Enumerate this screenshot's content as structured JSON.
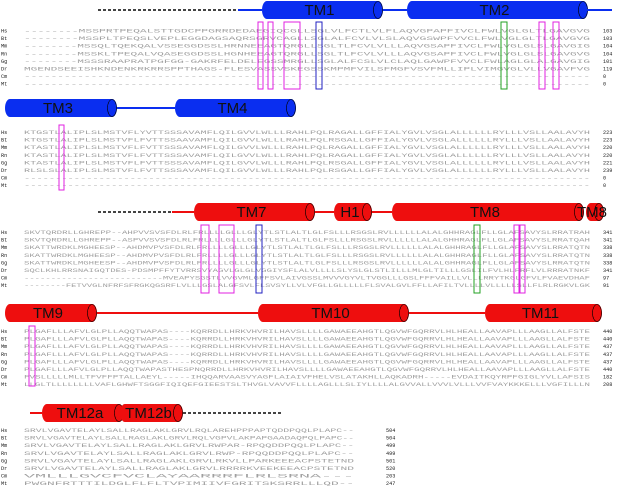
{
  "species": [
    "Hs",
    "Bt",
    "Mm",
    "Rn",
    "Gg",
    "Dr",
    "Cm",
    "Mt"
  ],
  "colors": {
    "blue": "#0a2ef0",
    "red": "#ee0e0e",
    "magenta_box": "#e020e0",
    "blue_box": "#2020c0",
    "green_box": "#20a020",
    "residue": "#a0a0a0"
  },
  "blocks": [
    {
      "sequences": [
        "--------MSSPRTPEQALSTTGDCPPGRRDEDAEGIQCGLLSGLVLFCTLVLFLAQVGPAPFIVCLFWLVGLGLTLGAVGVG",
        "--------MSSPLTPEQSLVEPLEGGDAGSAQRSGRVCAGLLSGLALFCVLVLSLAQVGSWPFVVCLFWLVGLGLTLGAVGVG",
        "--------MSSQLTQEKQALVSSEGGDSSLHRNNEEAGTQRGLLSGLTLFCVLVLLLAQVGSAPFIVCLFWLVGLGLSLGAVGIG",
        "--------MSSKLTPEQALVQASEGGDSSLHGNHEEAGTQRGLLSGLTLFCVLVLLLAQVGSAPFIVCLFWLVGLGLSLGAVGVG",
        "--------MSSSRAAPRATPGFGG-GAKRFELDELEGSSMRGLLSGLALFCSLVLCLAQLGAWPFVVCLFWLAGLGLALGAVGIG",
        "MGENDSEEISHKNDENKRKRRSPPTHAGS-FLESVASSVSKEGSSKMPMFVILSFMGFVSVFMLLIPLVIMGVGLVLLVGAVFVG",
        "-------------------------------------------------------------------------------------",
        "-------------------------------------------------------------------------------------"
      ],
      "numbers": [
        "103",
        "103",
        "104",
        "104",
        "101",
        "119",
        "0",
        "0"
      ]
    },
    {
      "sequences": [
        "KTGSTLALIPLSLMSTVFLYVTTSSSAVAMFLQILGVVLWLLLRAHLPQLRAGALLGFFIALYGVLVSGLALLLLLLRYLLLVSLLAALAVYH",
        "KTGSTLALIPLSLMSTVFLFVTTSSAAVAMFLQILGVVLWLLLRAHLPQLRSGALLGFFIALYGVLVSGLALLLLLLRYLLLVSLLAALAVYH",
        "KTASTLALIPLSLMSTVFLFVTTSSSAVAMFLQILGVVLWLLLRAHLPQLRAGALLGFFIALYGVLVSGLALLLLLLRYLLLVSLLAALAVYH",
        "KTASTLALIPLSLMSTVFLFVTTSSSAVAMFLQILGVVLWLLLRAHLPQLRAGALLGFFIALYGVLVSGLALLLLLLRYLLLVSLLAALAVYH",
        "KTASTLALIPLSLMSTVFLFVTTSSSAVAMFLQILGVVLWLLLRAHLPQLRSGALLGFFIALYGVLVSGLALLLLLLRYLLLVSLLAALAVYH",
        "RLSLSLALIPLSLMSTVFLFVTTSSSAVAMFLQILGVVLWLLLRAHLPQLRSGALLGFFIALYGVLVSGLALLLLLLRYLLLVSLLAALAVYH",
        "-------------------------------------------------------------------------------------------",
        "-------------------------------------------------------------------------------------------"
      ],
      "numbers": [
        "223",
        "223",
        "220",
        "220",
        "221",
        "239",
        "0",
        "0"
      ]
    },
    {
      "sequences": [
        "SKVTQRDRLLGHREPP--AHPVVSVSFDLRLFRLLLLGLLLGLYTLSTLALTLGLFSLLLRSGSLRVLLLLLLALALGHHRAGLFLLGLAFSAVYSLRRATRAH",
        "SKVTQRDRLLGHREPP--ASPVVSVSFDLRLFRLLLLGLLLGLYTLSTLALTLGLFSLLLRSGSLRVLLLLLLALALGHHRAGLFLLGLAFSAVYSLRRATQAH",
        "SKATTWRDKLMGHEESP--AHDMVPVSFDLRLFRLLLLGLLLGLYTLSTLALTLGLFSLLLRSGSLRVLLLLLLALALGHHRAGLFLLGLAFSAVYSLRRATQTN",
        "SKATTWRDKLMGHEESP--AHDMVPVSFDLRLFRLLLLGLLLGLYTLSTLALTLGLFSLLLRSGSLRVLLLLLLALALGHHRAGLFLLGLAFSAVYSLRRATQTN",
        "SKATTWRDKLMGHEESP--AHDMVPVSFDLRLFRLLLLGLLLGLYTLSTLALTLGLFSLLLRSGSLRVLLLLLLALALGHHRAGLFLLGLAFSAVYSLRRATQTN",
        "SQCLKHLRRSNAIGQTDES-PDSMPFFYTVRRSVYAGVLGLGLVGGIYSFLALVLLLLSLYSLGLSTLILLLMLGLTILLLGSLILFVLHLFRFLVLRRRATNKF",
        "--------------------------MVEAPYSGSTLVVGVMLGFFSVLAIVGSSLMVVVGYVLTVGGLLLGSLFFFVAILLVLLLRRYTKGLGFVLFVAEVDHAF",
        "--------FETVVGLNFRFSFRGKQGSRFLVLLLGSLALGFSVLFLSVSYLLVLVFGLLGLLLLLFLSVALGVLFFLLAFILTVLLLLVLLLLLSLLFLRLRGKVLGK"
      ],
      "numbers": [
        "341",
        "341",
        "338",
        "338",
        "338",
        "341",
        "97",
        "91"
      ]
    },
    {
      "sequences": [
        "PLGAFLLLAFVLGLPLLAQQTWAPAS----KQRRDLLHRKVHVRILHAVSLLLLGAWAEEAHGTLQGVWFGQRRVLHLHEALLAAVAPLLLAAGLLALFSTE",
        "PLGAFLLLAFVLGLPLLAQQTWAPAS----KQRRDLLHRKVHVRILHAVSLLLLGAWAEEAHGTLQGVWFGQRRVLHLHEALLAAVAPLLLAAGLLALFSTE",
        "PLGAFLLLAFVLGLPLLAQQTWAPAS----KQRRDLLHRKVHVRILHAVSLLLLGAWAEEAHGTLQGVWFGQRRVLHLHEALLAAVAPLLLAAGLLALFSTE",
        "PLGAFLLLAFVLGLPLLAQQTWAPAS----KQRRDLLHRKVHVRILHAVSLLLLGAWAEEAHGTLQGVWFGQRRVLHLHEALLAAVAPLLLAAGLLALFSTE",
        "PLGAFLLLAFVLGLPLLAQQTWAPAS----KQRRDLLHRKVHVRILHAVSLLLLGAWAEEAHGTLQGVWFGQRRVLHLHEALLAAVAPLLLAAGLLALFSTE",
        "PLGAFLLLAFVLGLPLLAQQTWAPASTHESPNQRRDLLHRKVHVRILHAVSLLLLGAWAEEAHGTLQGVWFGQRRVLHLHEALLAAVAPLLLAAGLLALFSTE",
        "FVSLLLLLMLLTFVFFPTALLAEYL-----IHQQARVAASVYAGFLAIAIVFHELVSLATAKHLLAQKADRH-----EVDAITKQYRPFGIGLYVLLAFSIS",
        "LLGLTLLLLLLLLVAFLGHWFTSGGFIQIQEFGIEESTSLTHVGLVAVVFLLLLAGLLLSLIYLLLLALGVVALLVVVLVLLLVVFVAYKKKELLLVGFILLLN"
      ],
      "numbers": [
        "440",
        "440",
        "437",
        "437",
        "437",
        "440",
        "182",
        "208"
      ]
    },
    {
      "sequences": [
        "SRVLVGAVTELAYLSALLRAGLAKLGRVLRQLAREHPPPAPTQDDPQQLPLAPC--",
        "SRVLVGAVTELAYLSALLRAGLAKLGRVLRQLVGPVLAKPAPGAADAQPQLPAPC--",
        "SRVLVGAVTELAYLSALLRAGLAKLGRVLRWPAR-RPQQDDPQQLPLAPC--",
        "SRVLVGAVTELAYLSALLRAGLAKLGRVLRWP-RPQQDDPQQLPLAPC--",
        "SRVLVGAVTELAYLSALLRAGLAKLGRVLRKVLLPARKEEEACPSTETND",
        "SRVLVGAVTELAYLSALLRAGLAKLGRVLRRRRKVEEKEEACPSTETND",
        "VMLLLGVCFVCLAYAARRRFLRLSRNA---",
        "PWGNFRTTTILDGLFLFLTVPIMIIVFGRITSKSRRLLLQD--"
      ],
      "numbers": [
        "504",
        "504",
        "499",
        "499",
        "501",
        "520",
        "203",
        "247"
      ]
    }
  ],
  "helices": [
    {
      "label": "TM1",
      "color": "blue"
    },
    {
      "label": "TM2",
      "color": "blue"
    },
    {
      "label": "TM3",
      "color": "blue"
    },
    {
      "label": "TM4",
      "color": "blue"
    },
    {
      "label": "TM7",
      "color": "red"
    },
    {
      "label": "H1",
      "color": "red"
    },
    {
      "label": "TM8",
      "color": "red"
    },
    {
      "label": "TM9",
      "color": "red"
    },
    {
      "label": "TM10",
      "color": "red"
    },
    {
      "label": "TM11",
      "color": "red"
    },
    {
      "label": "TM12a",
      "color": "red"
    },
    {
      "label": "TM12b",
      "color": "red"
    }
  ]
}
